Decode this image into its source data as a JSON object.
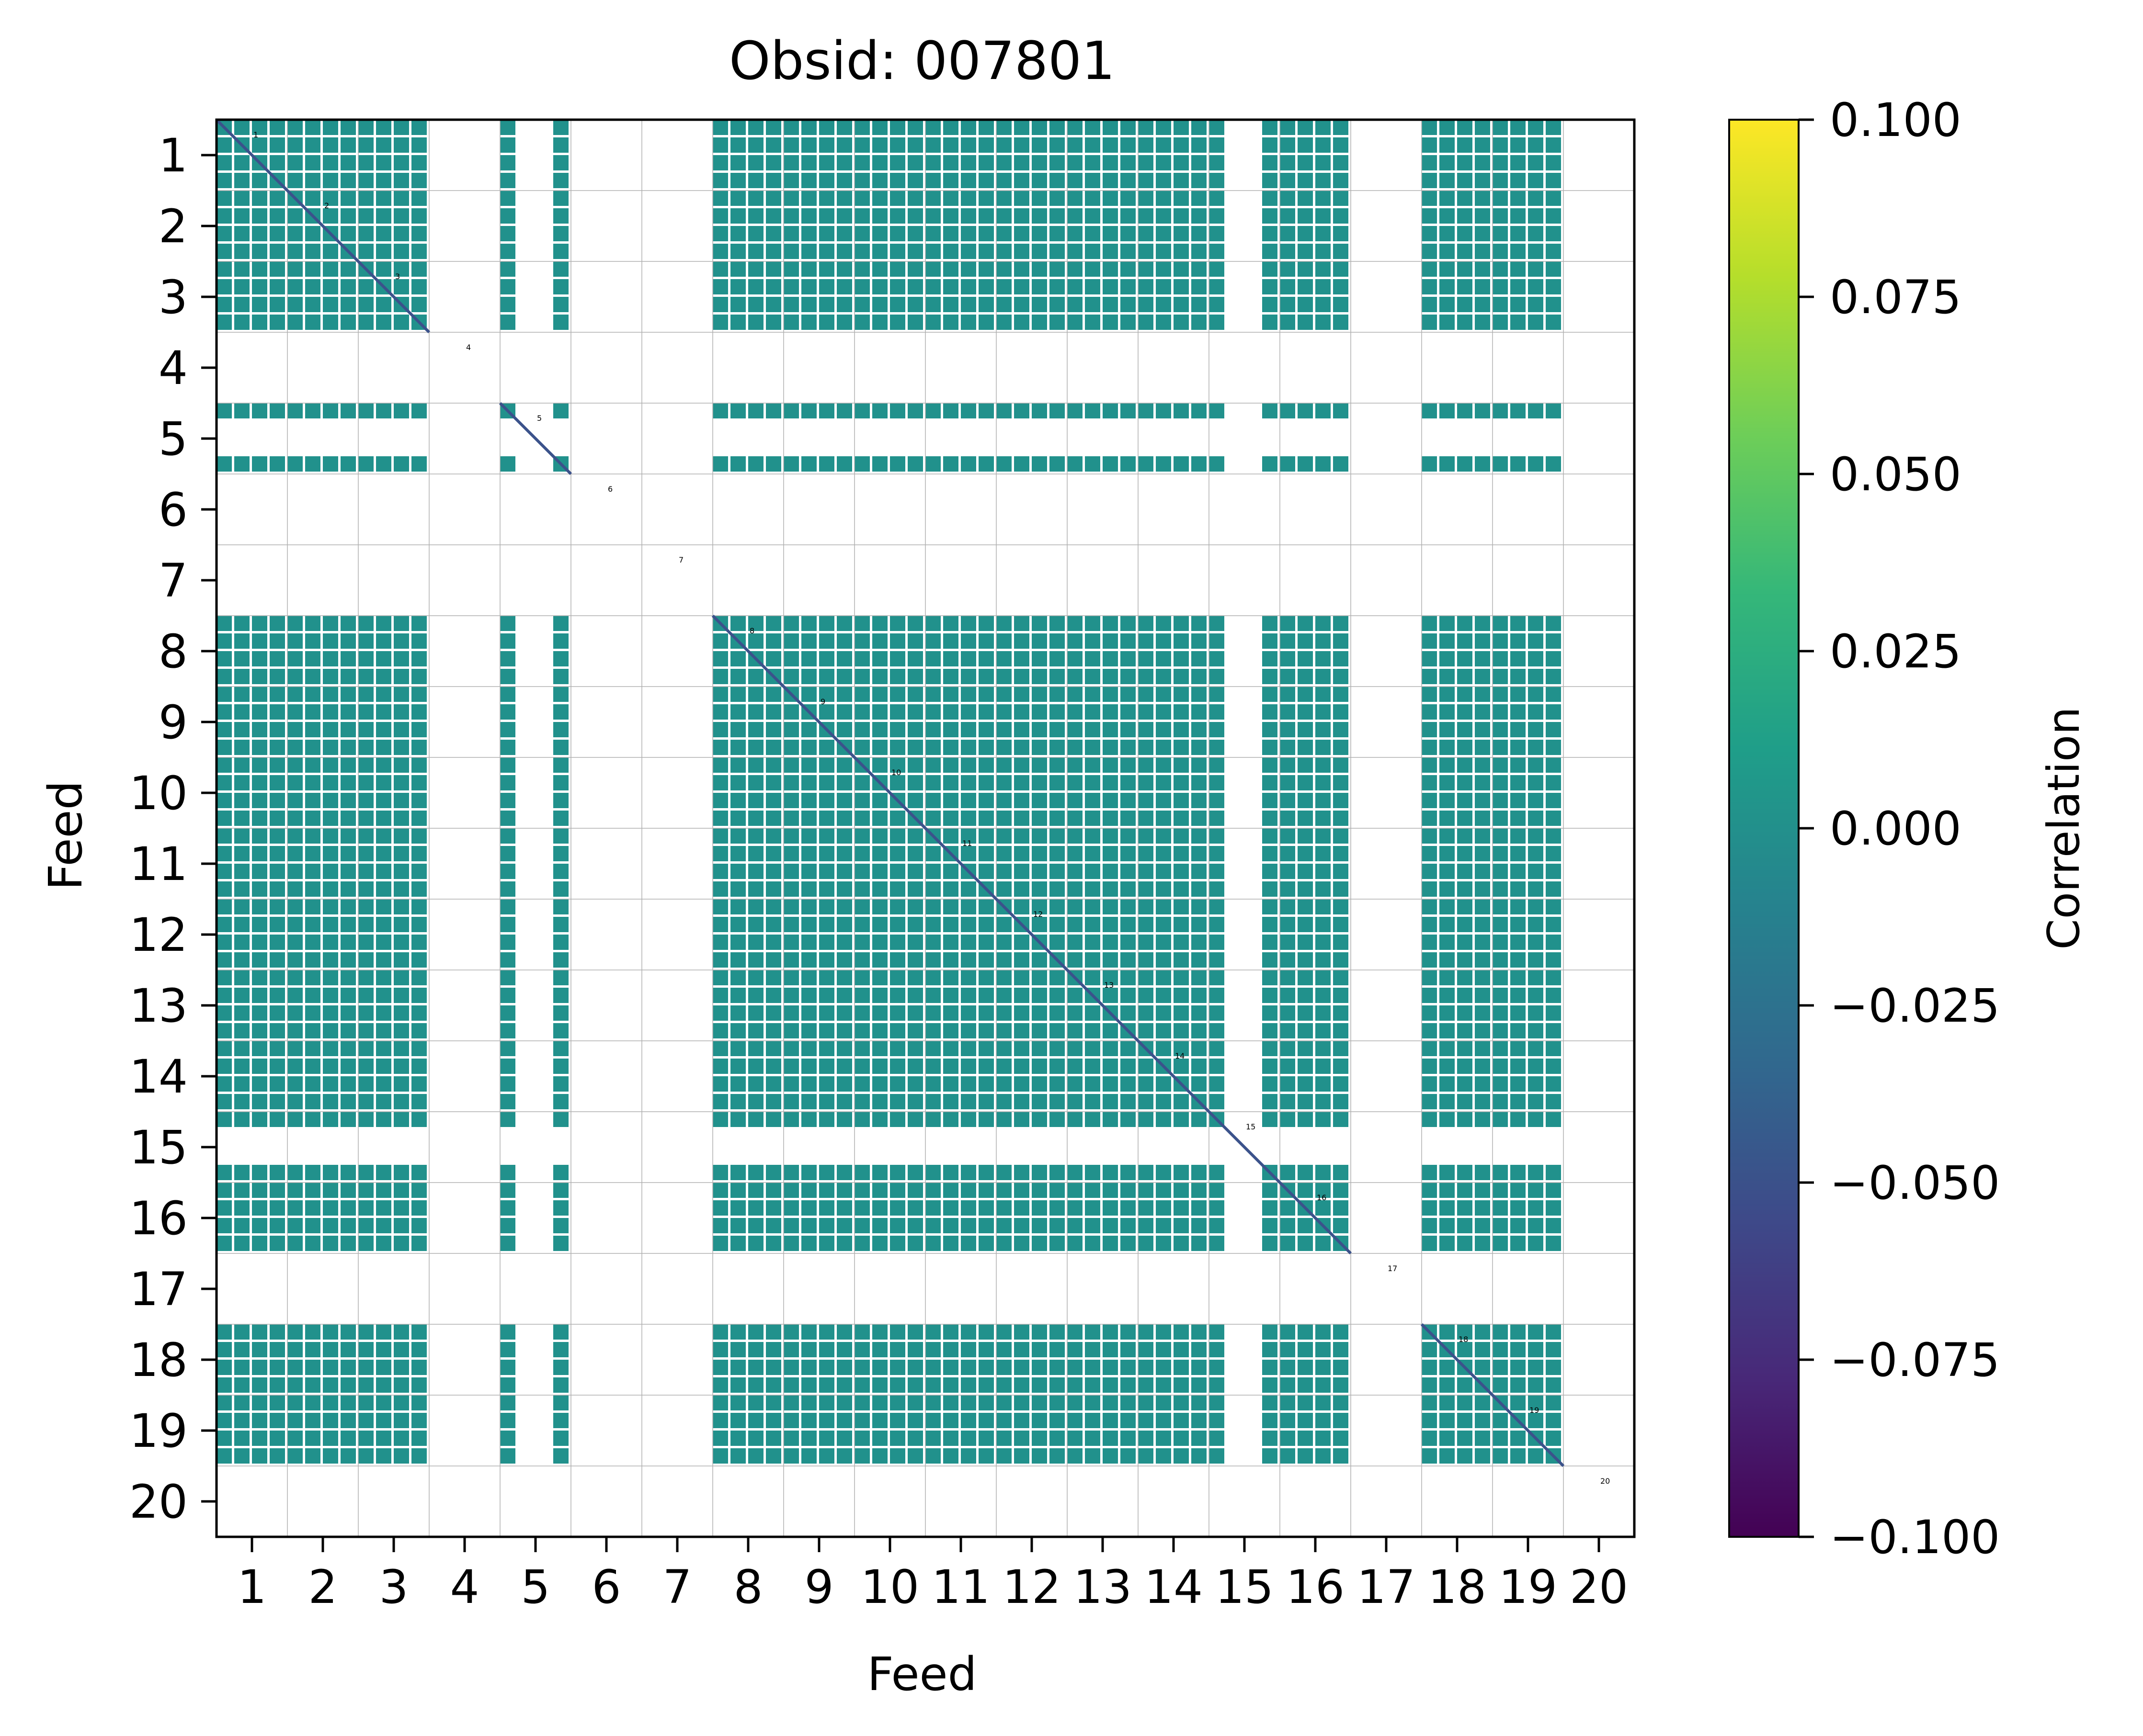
{
  "chart_data": {
    "type": "heatmap",
    "title": "Obsid: 007801",
    "xlabel": "Feed",
    "ylabel": "Feed",
    "x_ticks": [
      "1",
      "2",
      "3",
      "4",
      "5",
      "6",
      "7",
      "8",
      "9",
      "10",
      "11",
      "12",
      "13",
      "14",
      "15",
      "16",
      "17",
      "18",
      "19",
      "20"
    ],
    "y_ticks": [
      "1",
      "2",
      "3",
      "4",
      "5",
      "6",
      "7",
      "8",
      "9",
      "10",
      "11",
      "12",
      "13",
      "14",
      "15",
      "16",
      "17",
      "18",
      "19",
      "20"
    ],
    "feeds": [
      1,
      2,
      3,
      4,
      5,
      6,
      7,
      8,
      9,
      10,
      11,
      12,
      13,
      14,
      15,
      16,
      17,
      18,
      19,
      20
    ],
    "diagonal_labels": [
      "1",
      "2",
      "3",
      "4",
      "5",
      "6",
      "7",
      "8",
      "9",
      "10",
      "11",
      "12",
      "13",
      "14",
      "15",
      "16",
      "17",
      "18",
      "19",
      "20"
    ],
    "empty_feeds": [
      4,
      6,
      7,
      17,
      20
    ],
    "masked_subband_feeds": [
      5,
      15
    ],
    "dominant_value": 0.0,
    "grid": true,
    "colorbar": {
      "label": "Correlation",
      "colormap": "viridis",
      "vmin": -0.1,
      "vmax": 0.1,
      "ticks": [
        "−0.100",
        "−0.075",
        "−0.050",
        "−0.025",
        "0.000",
        "0.025",
        "0.050",
        "0.075",
        "0.100"
      ],
      "tick_values": [
        -0.1,
        -0.075,
        -0.05,
        -0.025,
        0.0,
        0.025,
        0.05,
        0.075,
        0.1
      ]
    }
  },
  "colors": {
    "cell": "#21918c",
    "diagonal": "#3b528b",
    "gridline": "#b0b0b0",
    "axis": "#000000",
    "viridis": [
      "#440154",
      "#482878",
      "#3e4989",
      "#31688e",
      "#26828e",
      "#1f9e89",
      "#35b779",
      "#6ece58",
      "#b5de2b",
      "#fde725"
    ]
  }
}
